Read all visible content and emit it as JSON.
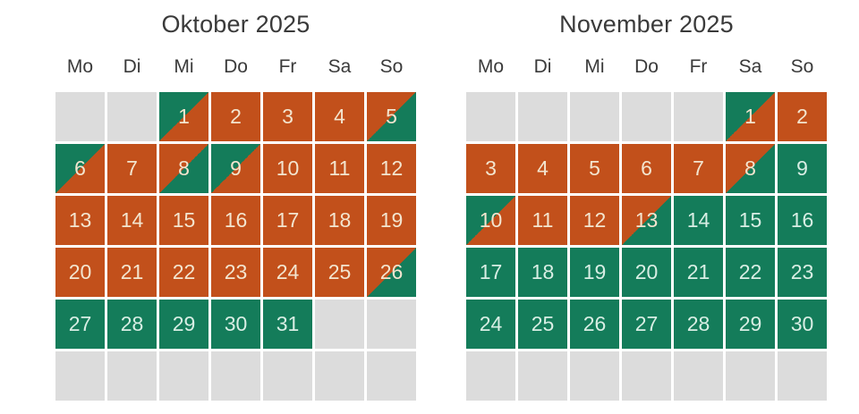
{
  "colors": {
    "background": "#ffffff",
    "booked_orange": "#c2501b",
    "available_green": "#147c5a",
    "empty_gray": "#dcdcdc",
    "heading_text": "#3a3a3a",
    "number_on_booked": "#f3e5cf",
    "number_on_available": "#d8eee4"
  },
  "calendars": [
    {
      "id": "october",
      "title": "Oktober 2025",
      "weekdays": [
        "Mo",
        "Di",
        "Mi",
        "Do",
        "Fr",
        "Sa",
        "So"
      ],
      "cells": [
        {
          "day": "",
          "state": "empty"
        },
        {
          "day": "",
          "state": "empty"
        },
        {
          "day": "1",
          "state": "free-booked"
        },
        {
          "day": "2",
          "state": "booked"
        },
        {
          "day": "3",
          "state": "booked"
        },
        {
          "day": "4",
          "state": "booked"
        },
        {
          "day": "5",
          "state": "booked-free"
        },
        {
          "day": "6",
          "state": "free-booked"
        },
        {
          "day": "7",
          "state": "booked"
        },
        {
          "day": "8",
          "state": "booked-free"
        },
        {
          "day": "9",
          "state": "free-booked"
        },
        {
          "day": "10",
          "state": "booked"
        },
        {
          "day": "11",
          "state": "booked"
        },
        {
          "day": "12",
          "state": "booked"
        },
        {
          "day": "13",
          "state": "booked"
        },
        {
          "day": "14",
          "state": "booked"
        },
        {
          "day": "15",
          "state": "booked"
        },
        {
          "day": "16",
          "state": "booked"
        },
        {
          "day": "17",
          "state": "booked"
        },
        {
          "day": "18",
          "state": "booked"
        },
        {
          "day": "19",
          "state": "booked"
        },
        {
          "day": "20",
          "state": "booked"
        },
        {
          "day": "21",
          "state": "booked"
        },
        {
          "day": "22",
          "state": "booked"
        },
        {
          "day": "23",
          "state": "booked"
        },
        {
          "day": "24",
          "state": "booked"
        },
        {
          "day": "25",
          "state": "booked"
        },
        {
          "day": "26",
          "state": "booked-free"
        },
        {
          "day": "27",
          "state": "free"
        },
        {
          "day": "28",
          "state": "free"
        },
        {
          "day": "29",
          "state": "free"
        },
        {
          "day": "30",
          "state": "free"
        },
        {
          "day": "31",
          "state": "free"
        },
        {
          "day": "",
          "state": "empty"
        },
        {
          "day": "",
          "state": "empty"
        },
        {
          "day": "",
          "state": "empty"
        },
        {
          "day": "",
          "state": "empty"
        },
        {
          "day": "",
          "state": "empty"
        },
        {
          "day": "",
          "state": "empty"
        },
        {
          "day": "",
          "state": "empty"
        },
        {
          "day": "",
          "state": "empty"
        },
        {
          "day": "",
          "state": "empty"
        }
      ]
    },
    {
      "id": "november",
      "title": "November 2025",
      "weekdays": [
        "Mo",
        "Di",
        "Mi",
        "Do",
        "Fr",
        "Sa",
        "So"
      ],
      "cells": [
        {
          "day": "",
          "state": "empty"
        },
        {
          "day": "",
          "state": "empty"
        },
        {
          "day": "",
          "state": "empty"
        },
        {
          "day": "",
          "state": "empty"
        },
        {
          "day": "",
          "state": "empty"
        },
        {
          "day": "1",
          "state": "free-booked"
        },
        {
          "day": "2",
          "state": "booked"
        },
        {
          "day": "3",
          "state": "booked"
        },
        {
          "day": "4",
          "state": "booked"
        },
        {
          "day": "5",
          "state": "booked"
        },
        {
          "day": "6",
          "state": "booked"
        },
        {
          "day": "7",
          "state": "booked"
        },
        {
          "day": "8",
          "state": "booked-free"
        },
        {
          "day": "9",
          "state": "free"
        },
        {
          "day": "10",
          "state": "free-booked"
        },
        {
          "day": "11",
          "state": "booked"
        },
        {
          "day": "12",
          "state": "booked"
        },
        {
          "day": "13",
          "state": "booked-free"
        },
        {
          "day": "14",
          "state": "free"
        },
        {
          "day": "15",
          "state": "free"
        },
        {
          "day": "16",
          "state": "free"
        },
        {
          "day": "17",
          "state": "free"
        },
        {
          "day": "18",
          "state": "free"
        },
        {
          "day": "19",
          "state": "free"
        },
        {
          "day": "20",
          "state": "free"
        },
        {
          "day": "21",
          "state": "free"
        },
        {
          "day": "22",
          "state": "free"
        },
        {
          "day": "23",
          "state": "free"
        },
        {
          "day": "24",
          "state": "free"
        },
        {
          "day": "25",
          "state": "free"
        },
        {
          "day": "26",
          "state": "free"
        },
        {
          "day": "27",
          "state": "free"
        },
        {
          "day": "28",
          "state": "free"
        },
        {
          "day": "29",
          "state": "free"
        },
        {
          "day": "30",
          "state": "free"
        },
        {
          "day": "",
          "state": "empty"
        },
        {
          "day": "",
          "state": "empty"
        },
        {
          "day": "",
          "state": "empty"
        },
        {
          "day": "",
          "state": "empty"
        },
        {
          "day": "",
          "state": "empty"
        },
        {
          "day": "",
          "state": "empty"
        },
        {
          "day": "",
          "state": "empty"
        }
      ]
    }
  ]
}
